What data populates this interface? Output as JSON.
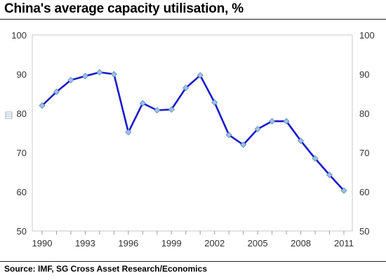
{
  "title": "China's average capacity utilisation, %",
  "source": "Source: IMF, SG Cross Asset Research/Economics",
  "chart_data": {
    "type": "line",
    "title": "China's average capacity utilisation, %",
    "xlabel": "",
    "ylabel": "",
    "x": [
      1990,
      1991,
      1992,
      1993,
      1994,
      1995,
      1996,
      1997,
      1998,
      1999,
      2000,
      2001,
      2002,
      2003,
      2004,
      2005,
      2006,
      2007,
      2008,
      2009,
      2010,
      2011
    ],
    "series": [
      {
        "values": [
          82,
          85.5,
          88.5,
          89.5,
          90.5,
          90,
          75.2,
          82.6,
          80.8,
          81,
          86.5,
          89.7,
          82.8,
          74.5,
          72,
          76,
          78,
          78,
          73,
          68.5,
          64.3,
          60.3
        ],
        "color": "#1a1acc",
        "marker_color": "#9cc3e6"
      }
    ],
    "xlim": [
      1990,
      2011
    ],
    "ylim": [
      50,
      100
    ],
    "x_ticks": [
      "1990",
      "1993",
      "1996",
      "1999",
      "2002",
      "2005",
      "2008",
      "2011"
    ],
    "y_ticks": [
      "50",
      "60",
      "70",
      "80",
      "90",
      "100"
    ],
    "y_ticks_right": [
      "50",
      "60",
      "70",
      "80",
      "90",
      "100"
    ],
    "grid": false,
    "legend": "none"
  }
}
